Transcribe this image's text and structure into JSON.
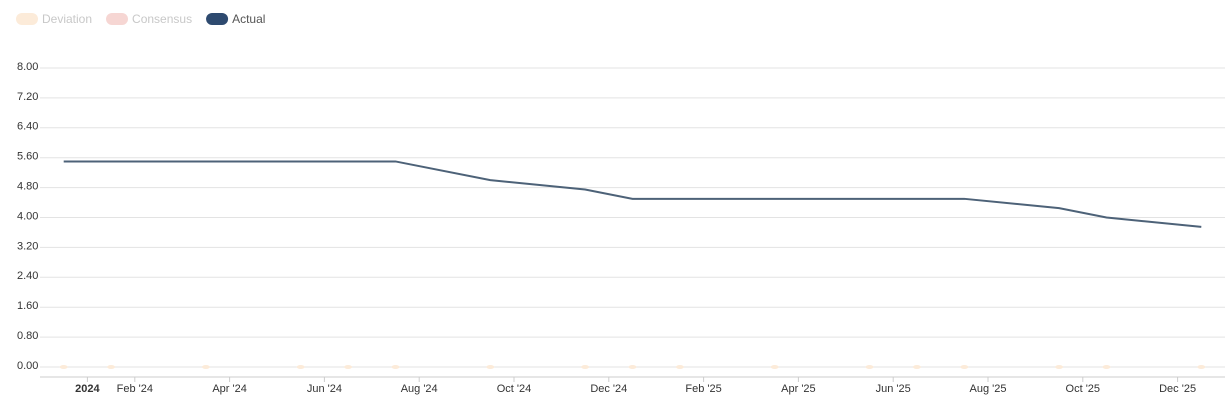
{
  "chart_data": {
    "type": "line",
    "x": [
      "2023-12",
      "2024-01",
      "2024-03",
      "2024-05",
      "2024-06",
      "2024-07",
      "2024-09",
      "2024-11",
      "2024-12",
      "2025-01",
      "2025-03",
      "2025-05",
      "2025-06",
      "2025-07",
      "2025-09",
      "2025-10",
      "2025-12"
    ],
    "series": [
      {
        "name": "Deviation",
        "color": "#fcebd9",
        "values": [
          0,
          0,
          0,
          0,
          0,
          0,
          0,
          0,
          0,
          0,
          0,
          0,
          0,
          0,
          0,
          0,
          0
        ]
      },
      {
        "name": "Consensus",
        "color": "#f6d6d3",
        "values": [
          null,
          null,
          null,
          null,
          null,
          null,
          null,
          null,
          null,
          null,
          null,
          null,
          null,
          null,
          null,
          null,
          null
        ]
      },
      {
        "name": "Actual",
        "color": "#2e4a6f",
        "values": [
          5.5,
          5.5,
          5.5,
          5.5,
          5.5,
          5.5,
          5.0,
          4.75,
          4.5,
          4.5,
          4.5,
          4.5,
          4.5,
          4.5,
          4.25,
          4.0,
          3.75
        ]
      }
    ],
    "xlim": [
      "2023-12",
      "2026-01"
    ],
    "xticks": [
      {
        "value": "2024-01",
        "label": "2024"
      },
      {
        "value": "2024-02",
        "label": "Feb '24"
      },
      {
        "value": "2024-04",
        "label": "Apr '24"
      },
      {
        "value": "2024-06",
        "label": "Jun '24"
      },
      {
        "value": "2024-08",
        "label": "Aug '24"
      },
      {
        "value": "2024-10",
        "label": "Oct '24"
      },
      {
        "value": "2024-12",
        "label": "Dec '24"
      },
      {
        "value": "2025-02",
        "label": "Feb '25"
      },
      {
        "value": "2025-04",
        "label": "Apr '25"
      },
      {
        "value": "2025-06",
        "label": "Jun '25"
      },
      {
        "value": "2025-08",
        "label": "Aug '25"
      },
      {
        "value": "2025-10",
        "label": "Oct '25"
      },
      {
        "value": "2025-12",
        "label": "Dec '25"
      }
    ],
    "ylim": [
      0,
      8
    ],
    "yticks": [
      {
        "value": 0,
        "label": "0.00"
      },
      {
        "value": 0.8,
        "label": "0.80"
      },
      {
        "value": 1.6,
        "label": "1.60"
      },
      {
        "value": 2.4,
        "label": "2.40"
      },
      {
        "value": 3.2,
        "label": "3.20"
      },
      {
        "value": 4,
        "label": "4.00"
      },
      {
        "value": 4.8,
        "label": "4.80"
      },
      {
        "value": 5.6,
        "label": "5.60"
      },
      {
        "value": 6.4,
        "label": "6.40"
      },
      {
        "value": 7.2,
        "label": "7.20"
      },
      {
        "value": 8,
        "label": "8.00"
      }
    ],
    "grid": true
  }
}
